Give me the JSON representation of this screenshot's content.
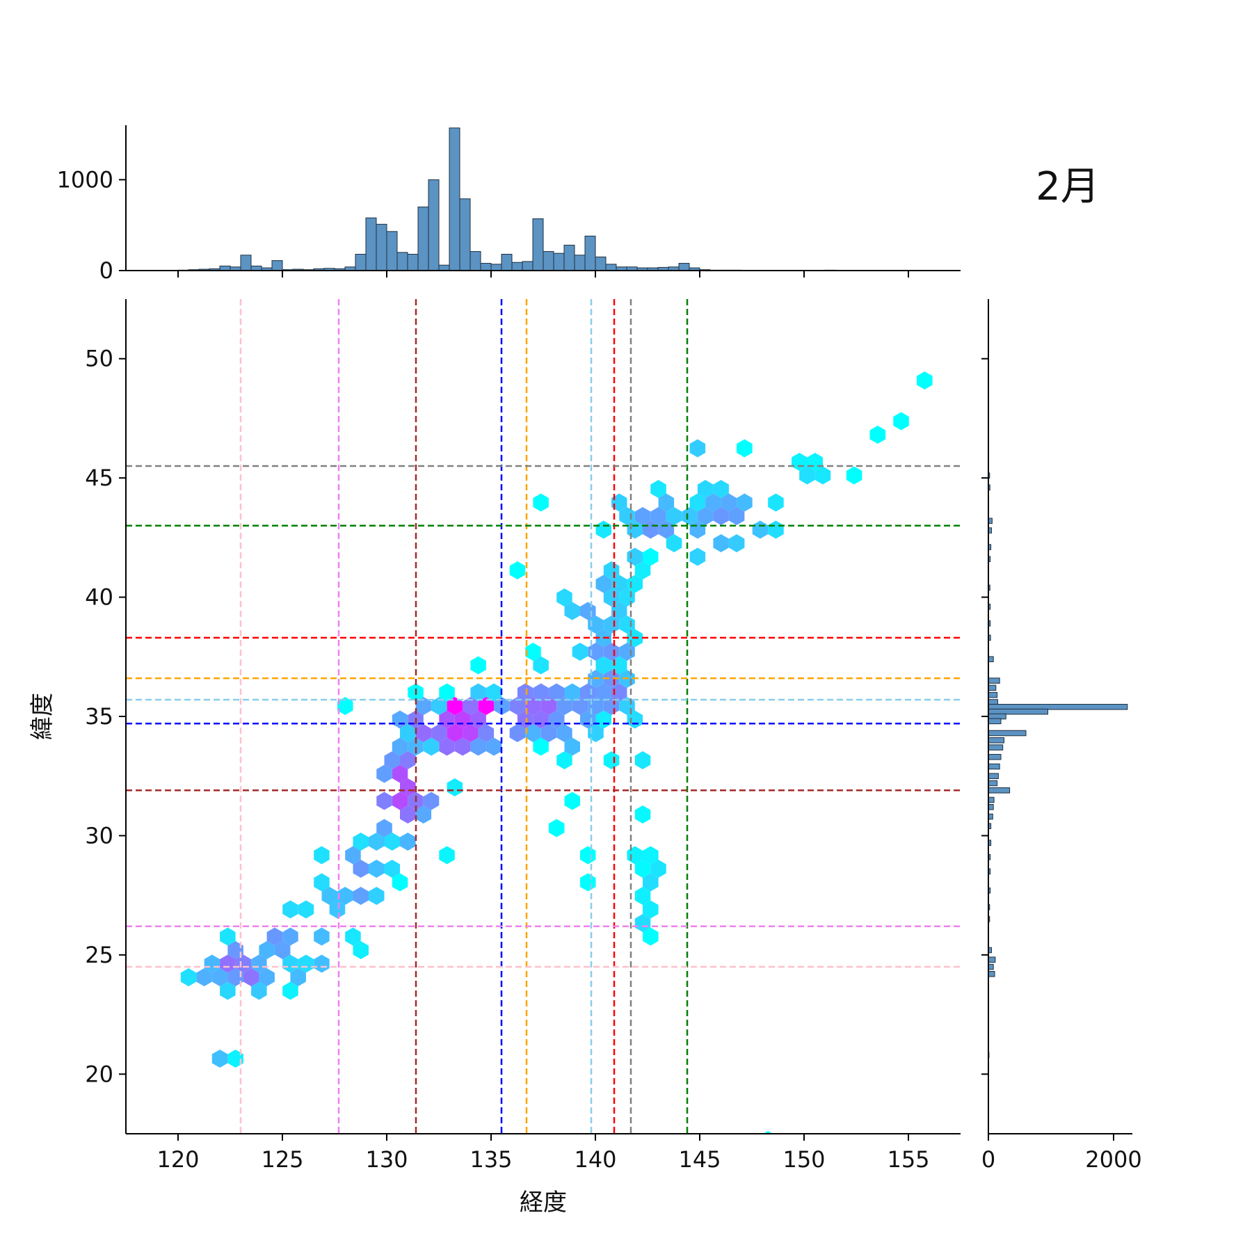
{
  "chart_data": {
    "type": "hexbin-jointplot",
    "title": "2月",
    "xlabel": "経度",
    "ylabel": "緯度",
    "xlim": [
      117.5,
      157.5
    ],
    "ylim": [
      17.5,
      52.5
    ],
    "xticks": [
      "120",
      "125",
      "130",
      "135",
      "140",
      "145",
      "150",
      "155"
    ],
    "yticks": [
      "20",
      "25",
      "30",
      "35",
      "40",
      "45",
      "50"
    ],
    "top_hist": {
      "ylim": [
        0,
        1600
      ],
      "yticks": [
        "0",
        "1000"
      ],
      "bin_start": 120.0,
      "bin_width": 0.5,
      "values": [
        5,
        10,
        15,
        20,
        50,
        40,
        170,
        50,
        30,
        110,
        10,
        15,
        10,
        20,
        25,
        20,
        40,
        180,
        580,
        510,
        430,
        200,
        180,
        700,
        1000,
        60,
        1570,
        790,
        210,
        80,
        70,
        180,
        90,
        100,
        570,
        210,
        190,
        280,
        170,
        380,
        150,
        70,
        40,
        40,
        30,
        30,
        35,
        40,
        80,
        30,
        10,
        5,
        5,
        5,
        0,
        0,
        0,
        0,
        0,
        0,
        0,
        0,
        5
      ]
    },
    "right_hist": {
      "xlim": [
        0,
        2300
      ],
      "xticks": [
        "0",
        "2000"
      ],
      "bars": [
        {
          "lat": 45.1,
          "count": 20
        },
        {
          "lat": 44.6,
          "count": 25
        },
        {
          "lat": 43.2,
          "count": 60
        },
        {
          "lat": 42.8,
          "count": 50
        },
        {
          "lat": 42.1,
          "count": 40
        },
        {
          "lat": 41.6,
          "count": 30
        },
        {
          "lat": 40.4,
          "count": 25
        },
        {
          "lat": 39.6,
          "count": 30
        },
        {
          "lat": 38.9,
          "count": 30
        },
        {
          "lat": 38.3,
          "count": 35
        },
        {
          "lat": 37.4,
          "count": 80
        },
        {
          "lat": 36.5,
          "count": 180
        },
        {
          "lat": 36.2,
          "count": 120
        },
        {
          "lat": 35.9,
          "count": 140
        },
        {
          "lat": 35.6,
          "count": 150
        },
        {
          "lat": 35.4,
          "count": 2220
        },
        {
          "lat": 35.2,
          "count": 950
        },
        {
          "lat": 35.0,
          "count": 280
        },
        {
          "lat": 34.8,
          "count": 200
        },
        {
          "lat": 34.3,
          "count": 600
        },
        {
          "lat": 34.0,
          "count": 250
        },
        {
          "lat": 33.7,
          "count": 230
        },
        {
          "lat": 33.3,
          "count": 200
        },
        {
          "lat": 32.9,
          "count": 180
        },
        {
          "lat": 32.5,
          "count": 160
        },
        {
          "lat": 32.2,
          "count": 140
        },
        {
          "lat": 31.9,
          "count": 340
        },
        {
          "lat": 31.5,
          "count": 90
        },
        {
          "lat": 31.2,
          "count": 80
        },
        {
          "lat": 30.8,
          "count": 70
        },
        {
          "lat": 30.4,
          "count": 40
        },
        {
          "lat": 29.7,
          "count": 40
        },
        {
          "lat": 29.1,
          "count": 30
        },
        {
          "lat": 28.5,
          "count": 30
        },
        {
          "lat": 27.7,
          "count": 30
        },
        {
          "lat": 27.0,
          "count": 20
        },
        {
          "lat": 26.5,
          "count": 20
        },
        {
          "lat": 25.2,
          "count": 50
        },
        {
          "lat": 24.8,
          "count": 110
        },
        {
          "lat": 24.5,
          "count": 80
        },
        {
          "lat": 24.2,
          "count": 100
        },
        {
          "lat": 20.8,
          "count": 10
        }
      ]
    },
    "vlines": [
      {
        "x": 123.0,
        "color": "#ffc0cb"
      },
      {
        "x": 127.7,
        "color": "#ee82ee"
      },
      {
        "x": 131.4,
        "color": "#a52a2a"
      },
      {
        "x": 135.5,
        "color": "#0000ff"
      },
      {
        "x": 136.7,
        "color": "#ffa500"
      },
      {
        "x": 139.8,
        "color": "#87ceeb"
      },
      {
        "x": 140.9,
        "color": "#ff0000"
      },
      {
        "x": 141.7,
        "color": "#808080"
      },
      {
        "x": 144.4,
        "color": "#008000"
      }
    ],
    "hlines": [
      {
        "y": 45.5,
        "color": "#808080"
      },
      {
        "y": 43.0,
        "color": "#008000"
      },
      {
        "y": 38.3,
        "color": "#ff0000"
      },
      {
        "y": 36.6,
        "color": "#ffa500"
      },
      {
        "y": 35.7,
        "color": "#87ceeb"
      },
      {
        "y": 34.7,
        "color": "#0000ff"
      },
      {
        "y": 31.9,
        "color": "#a52a2a"
      },
      {
        "y": 26.2,
        "color": "#ee82ee"
      },
      {
        "y": 24.5,
        "color": "#ffc0cb"
      }
    ],
    "hex_colormap": [
      "#00ffff",
      "#ff00ff"
    ],
    "hex_clusters": [
      {
        "x": 122.8,
        "y": 24.4,
        "sx": 1.3,
        "sy": 0.8,
        "n": 22,
        "level": 0.45
      },
      {
        "x": 125.5,
        "y": 25.5,
        "sx": 1.6,
        "sy": 1.0,
        "n": 16,
        "level": 0.3
      },
      {
        "x": 128.5,
        "y": 28.0,
        "sx": 1.2,
        "sy": 1.4,
        "n": 22,
        "level": 0.3
      },
      {
        "x": 130.7,
        "y": 31.8,
        "sx": 1.2,
        "sy": 1.6,
        "n": 34,
        "level": 0.55
      },
      {
        "x": 133.3,
        "y": 34.6,
        "sx": 1.7,
        "sy": 0.8,
        "n": 40,
        "level": 0.6
      },
      {
        "x": 137.5,
        "y": 35.3,
        "sx": 1.6,
        "sy": 1.0,
        "n": 38,
        "level": 0.5
      },
      {
        "x": 140.5,
        "y": 36.5,
        "sx": 1.1,
        "sy": 1.7,
        "n": 34,
        "level": 0.4
      },
      {
        "x": 140.2,
        "y": 39.5,
        "sx": 1.2,
        "sy": 1.6,
        "n": 32,
        "level": 0.25
      },
      {
        "x": 142.7,
        "y": 43.0,
        "sx": 1.3,
        "sy": 1.2,
        "n": 32,
        "level": 0.3
      },
      {
        "x": 146.0,
        "y": 43.2,
        "sx": 1.8,
        "sy": 1.0,
        "n": 22,
        "level": 0.3
      },
      {
        "x": 150.5,
        "y": 45.1,
        "sx": 0.8,
        "sy": 0.4,
        "n": 6,
        "level": 0.1
      },
      {
        "x": 142.3,
        "y": 29.0,
        "sx": 0.3,
        "sy": 2.3,
        "n": 10,
        "level": 0.1
      }
    ],
    "hex_points": [
      {
        "x": 122.0,
        "y": 20.8,
        "level": 0.25
      },
      {
        "x": 123.1,
        "y": 20.8,
        "level": 0.05
      },
      {
        "x": 147.9,
        "y": 17.5,
        "level": 0.0
      },
      {
        "x": 155.9,
        "y": 49.1,
        "level": 0.0
      },
      {
        "x": 153.8,
        "y": 46.8,
        "level": 0.0
      },
      {
        "x": 154.4,
        "y": 47.1,
        "level": 0.0
      },
      {
        "x": 136.6,
        "y": 41.3,
        "level": 0.0
      },
      {
        "x": 128.0,
        "y": 35.5,
        "level": 0.0
      },
      {
        "x": 133.3,
        "y": 35.5,
        "level": 1.0
      },
      {
        "x": 134.7,
        "y": 35.5,
        "level": 1.0
      },
      {
        "x": 139.2,
        "y": 31.3,
        "level": 0.0
      },
      {
        "x": 138.5,
        "y": 30.6,
        "level": 0.0
      },
      {
        "x": 139.9,
        "y": 29.2,
        "level": 0.0
      },
      {
        "x": 139.9,
        "y": 28.2,
        "level": 0.0
      },
      {
        "x": 142.5,
        "y": 25.5,
        "level": 0.0
      },
      {
        "x": 147.5,
        "y": 46.5,
        "level": 0.0
      },
      {
        "x": 144.8,
        "y": 46.5,
        "level": 0.2
      },
      {
        "x": 137.4,
        "y": 43.9,
        "level": 0.0
      }
    ]
  }
}
